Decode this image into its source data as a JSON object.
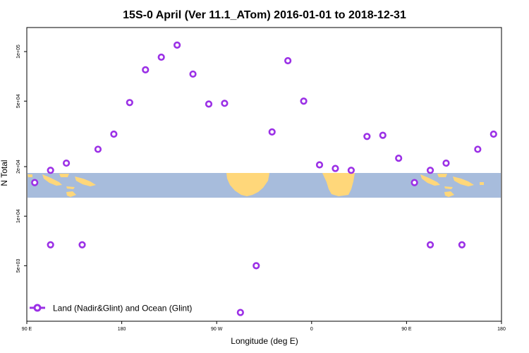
{
  "chart_data": {
    "type": "scatter",
    "title": "15S-0 April (Ver 11.1_ATom)   2016-01-01 to 2018-12-31",
    "xlabel": "Longitude (deg E)",
    "ylabel": "N Total",
    "x_scale": "linear",
    "y_scale": "log",
    "xlim": [
      90,
      540
    ],
    "ylim": [
      2300,
      140000
    ],
    "x_ticks": [
      {
        "value": 90,
        "label": "90 E"
      },
      {
        "value": 180,
        "label": "180"
      },
      {
        "value": 270,
        "label": "90 W"
      },
      {
        "value": 360,
        "label": "0"
      },
      {
        "value": 450,
        "label": "90 E"
      },
      {
        "value": 540,
        "label": "180"
      }
    ],
    "y_ticks": [
      {
        "value": 5000,
        "label": "5e+03"
      },
      {
        "value": 10000,
        "label": "1e+04"
      },
      {
        "value": 20000,
        "label": "2e+04"
      },
      {
        "value": 50000,
        "label": "5e+04"
      },
      {
        "value": 100000,
        "label": "1e+05"
      }
    ],
    "grid": false,
    "legend_position": "bottom-left",
    "series": [
      {
        "name": "Land (Nadir&Glint) and Ocean (Glint)",
        "color": "#9b30e6",
        "x": [
          97.5,
          112.5,
          127.5,
          142.5,
          157.5,
          172.5,
          187.5,
          202.5,
          217.5,
          232.5,
          247.5,
          262.5,
          277.5,
          292.5,
          307.5,
          322.5,
          337.5,
          352.5,
          367.5,
          382.5,
          397.5,
          412.5,
          427.5,
          442.5,
          457.5,
          472.5,
          487.5,
          502.5,
          517.5,
          532.5,
          112.5,
          472.5
        ],
        "y": [
          16000,
          19000,
          21000,
          6700,
          25500,
          31500,
          49000,
          77500,
          92500,
          109500,
          73000,
          48000,
          48500,
          2600,
          5000,
          32500,
          88000,
          50000,
          20500,
          19500,
          19000,
          30500,
          31000,
          22500,
          16000,
          19000,
          21000,
          6700,
          25500,
          31500,
          6700,
          6700
        ]
      }
    ]
  },
  "map_strip": {
    "ocean_color": "#a7bcdc",
    "land_color": "#ffd77a"
  }
}
